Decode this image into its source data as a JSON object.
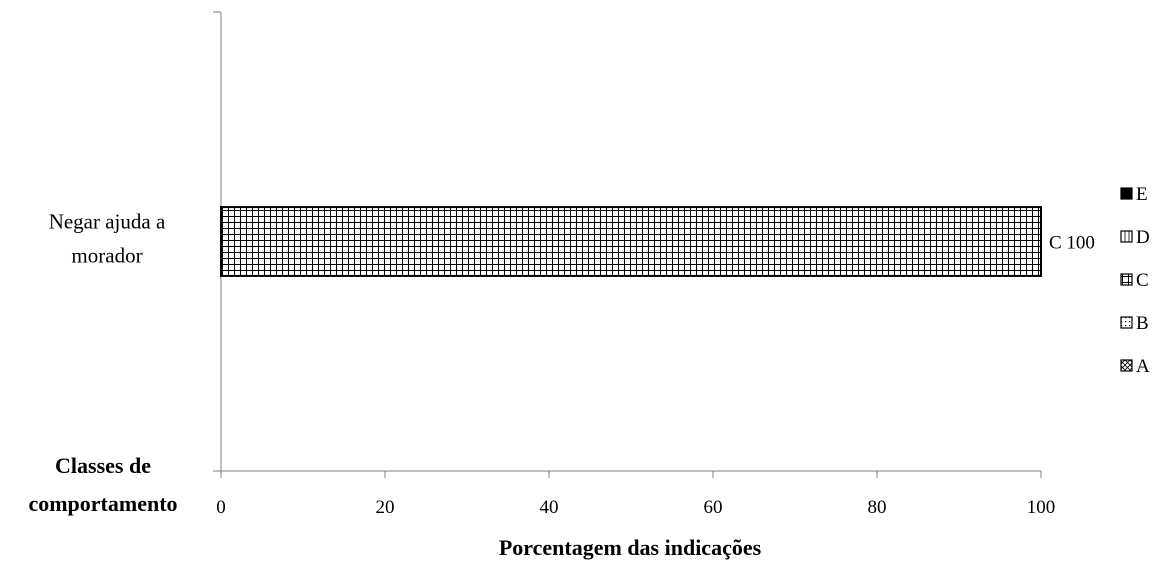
{
  "chart_data": {
    "type": "bar",
    "orientation": "horizontal",
    "stacked": true,
    "categories": [
      "Negar ajuda a morador"
    ],
    "category_lines": [
      [
        "Negar ajuda a",
        "morador"
      ]
    ],
    "series": [
      {
        "name": "A",
        "values": [
          0
        ],
        "pattern": "diagonal-cross"
      },
      {
        "name": "B",
        "values": [
          0
        ],
        "pattern": "dots"
      },
      {
        "name": "C",
        "values": [
          100
        ],
        "pattern": "grid"
      },
      {
        "name": "D",
        "values": [
          0
        ],
        "pattern": "vertical-lines"
      },
      {
        "name": "E",
        "values": [
          0
        ],
        "pattern": "horizontal-solid"
      }
    ],
    "data_labels": [
      {
        "series": "C",
        "category": "Negar ajuda a morador",
        "text": "C 100"
      }
    ],
    "xlabel": "Porcentagem das indicações",
    "ylabel_lines": [
      "Classes de",
      "comportamento"
    ],
    "xlim": [
      0,
      100
    ],
    "xticks": [
      0,
      20,
      40,
      60,
      80,
      100
    ],
    "grid": false,
    "legend_position": "right",
    "legend_order": [
      "E",
      "D",
      "C",
      "B",
      "A"
    ],
    "colors": {
      "bar_fill": "#ffffff",
      "bar_stroke": "#000000",
      "axis": "#808080"
    }
  }
}
